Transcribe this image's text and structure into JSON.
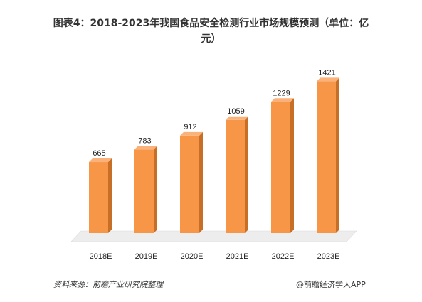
{
  "chart_data": {
    "type": "bar",
    "title": "图表4：2018-2023年我国食品安全检测行业市场规模预测（单位：亿元）",
    "categories": [
      "2018E",
      "2019E",
      "2020E",
      "2021E",
      "2022E",
      "2023E"
    ],
    "values": [
      665,
      783,
      912,
      1059,
      1229,
      1421
    ],
    "ylim": [
      0,
      1550
    ],
    "grid": false,
    "legend": "none",
    "bar_color": "#F79646",
    "bar_side_color": "#C86F27",
    "bar_top_color": "#FBB27A",
    "floor_color": "#EDEDED"
  },
  "title": "图表4：2018-2023年我国食品安全检测行业市场规模预测（单位：亿元）",
  "source": "资料来源：前瞻产业研究院整理",
  "credit": "@前瞻经济学人APP"
}
